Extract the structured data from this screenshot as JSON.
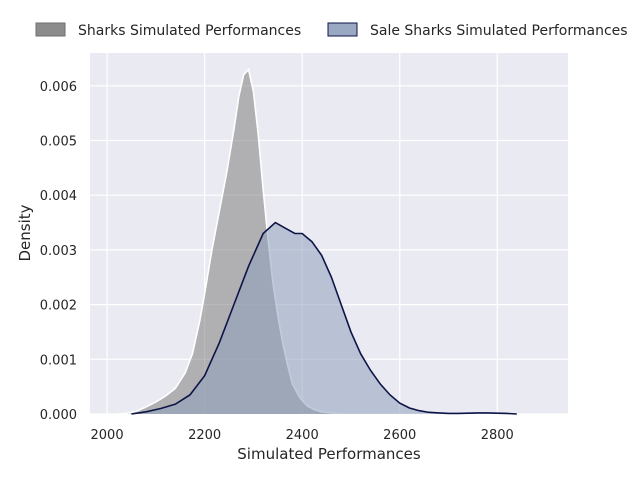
{
  "chart_data": {
    "type": "area",
    "title": "",
    "xlabel": "Simulated Performances",
    "ylabel": "Density",
    "xlim": [
      1965,
      2945
    ],
    "ylim": [
      0,
      0.0066
    ],
    "xticks": [
      2000,
      2200,
      2400,
      2600,
      2800
    ],
    "xtick_labels": [
      "2000",
      "2200",
      "2400",
      "2600",
      "2800"
    ],
    "yticks": [
      0,
      0.001,
      0.002,
      0.003,
      0.004,
      0.005,
      0.006
    ],
    "ytick_labels": [
      "0.000",
      "0.001",
      "0.002",
      "0.003",
      "0.004",
      "0.005",
      "0.006"
    ],
    "grid": true,
    "legend_position": "top, outside",
    "series": [
      {
        "name": "Sharks Simulated Performances",
        "fill_color": "#808080",
        "line_color": "#ffffff",
        "points": [
          [
            2020,
            0.0
          ],
          [
            2040,
            1e-05
          ],
          [
            2060,
            5e-05
          ],
          [
            2080,
            0.00013
          ],
          [
            2100,
            0.00022
          ],
          [
            2120,
            0.00033
          ],
          [
            2140,
            0.00047
          ],
          [
            2160,
            0.00075
          ],
          [
            2175,
            0.0011
          ],
          [
            2190,
            0.0017
          ],
          [
            2200,
            0.0022
          ],
          [
            2215,
            0.003
          ],
          [
            2230,
            0.0037
          ],
          [
            2245,
            0.0044
          ],
          [
            2260,
            0.0052
          ],
          [
            2270,
            0.0058
          ],
          [
            2280,
            0.0062
          ],
          [
            2290,
            0.0063
          ],
          [
            2300,
            0.0059
          ],
          [
            2310,
            0.0051
          ],
          [
            2320,
            0.0041
          ],
          [
            2330,
            0.0032
          ],
          [
            2340,
            0.0024
          ],
          [
            2350,
            0.0018
          ],
          [
            2360,
            0.0013
          ],
          [
            2370,
            0.0009
          ],
          [
            2380,
            0.00055
          ],
          [
            2395,
            0.0003
          ],
          [
            2410,
            0.00015
          ],
          [
            2425,
            8e-05
          ],
          [
            2440,
            4e-05
          ],
          [
            2460,
            2e-05
          ],
          [
            2480,
            0.0
          ]
        ]
      },
      {
        "name": "Sale Sharks Simulated Performances",
        "fill_color": "#8ea0bb",
        "line_color": "#0e1446",
        "points": [
          [
            2050,
            0.0
          ],
          [
            2080,
            4e-05
          ],
          [
            2110,
            0.0001
          ],
          [
            2140,
            0.00018
          ],
          [
            2170,
            0.00035
          ],
          [
            2200,
            0.0007
          ],
          [
            2230,
            0.0013
          ],
          [
            2260,
            0.002
          ],
          [
            2290,
            0.0027
          ],
          [
            2320,
            0.0033
          ],
          [
            2345,
            0.0035
          ],
          [
            2365,
            0.0034
          ],
          [
            2385,
            0.0033
          ],
          [
            2400,
            0.0033
          ],
          [
            2420,
            0.00315
          ],
          [
            2440,
            0.0029
          ],
          [
            2460,
            0.0025
          ],
          [
            2480,
            0.002
          ],
          [
            2500,
            0.0015
          ],
          [
            2520,
            0.0011
          ],
          [
            2540,
            0.0008
          ],
          [
            2560,
            0.00055
          ],
          [
            2580,
            0.00035
          ],
          [
            2600,
            0.0002
          ],
          [
            2620,
            0.00011
          ],
          [
            2640,
            6e-05
          ],
          [
            2660,
            3e-05
          ],
          [
            2680,
            2e-05
          ],
          [
            2700,
            1e-05
          ],
          [
            2720,
            1e-05
          ],
          [
            2740,
            1.5e-05
          ],
          [
            2760,
            2e-05
          ],
          [
            2780,
            2e-05
          ],
          [
            2800,
            1.5e-05
          ],
          [
            2820,
            1e-05
          ],
          [
            2840,
            0.0
          ]
        ]
      }
    ]
  }
}
